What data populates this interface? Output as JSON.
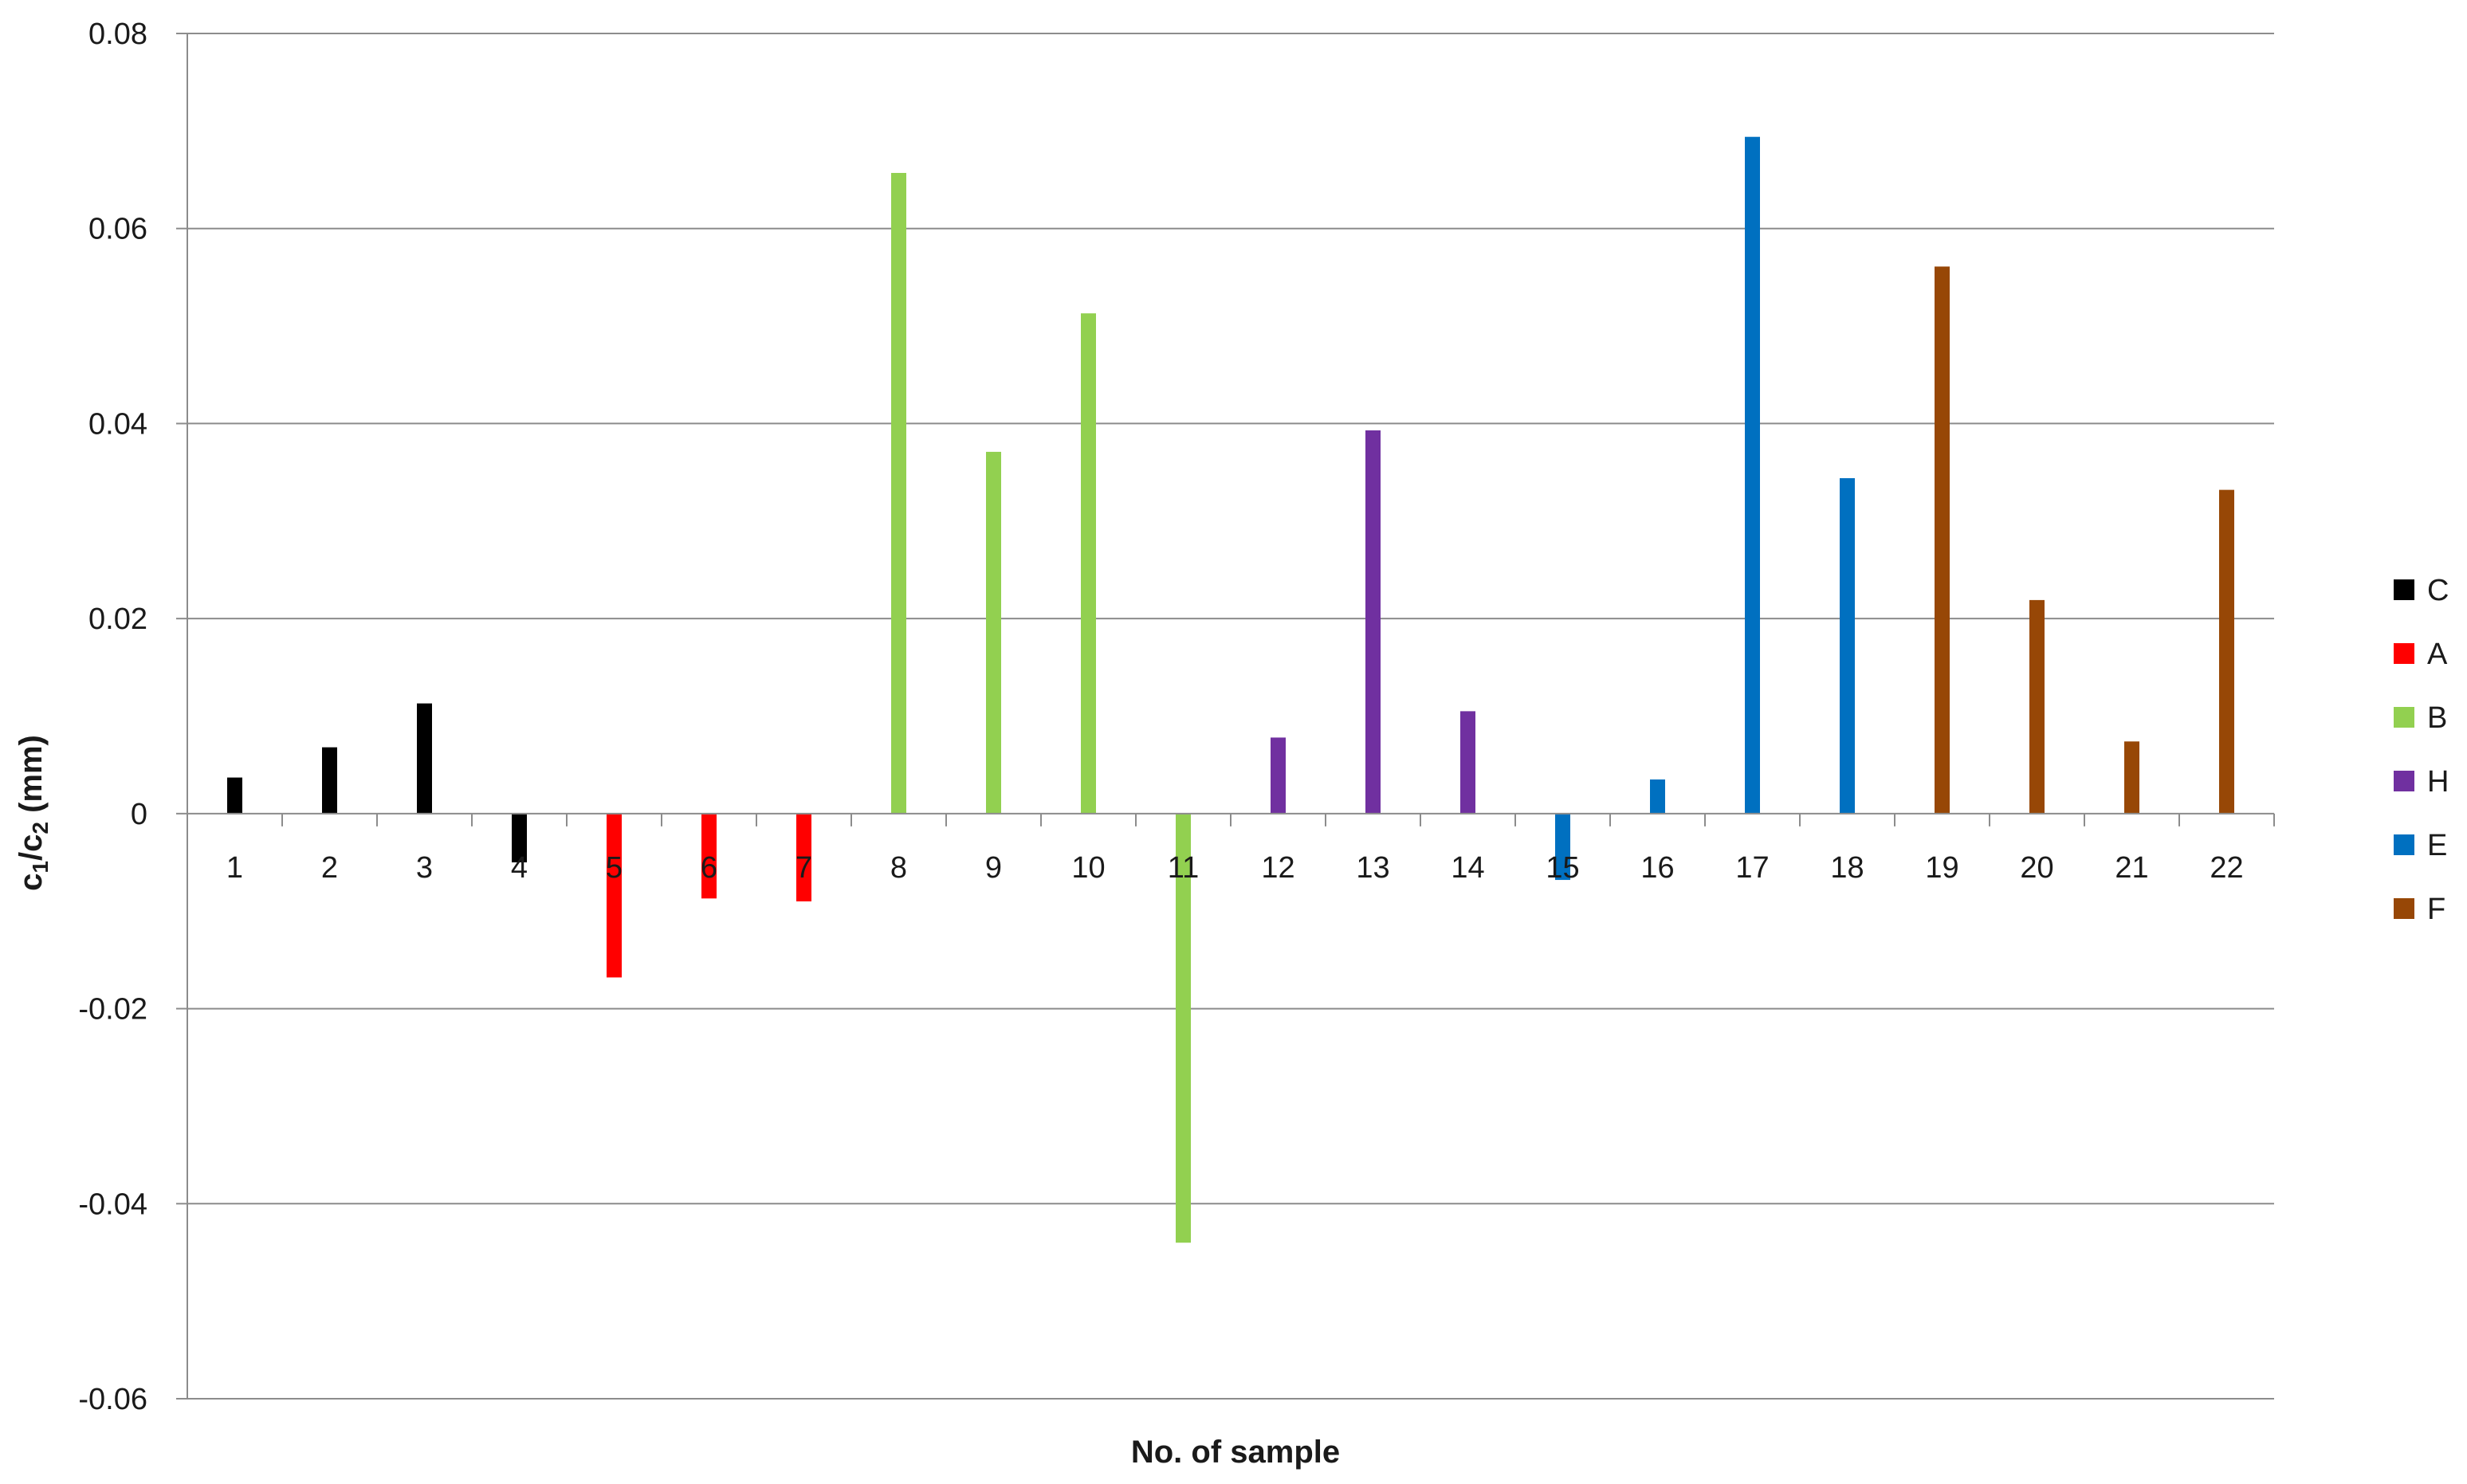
{
  "chart_data": {
    "type": "bar",
    "title": "",
    "xlabel": "No. of sample",
    "ylabel_base1": "c",
    "ylabel_sub1": "1",
    "ylabel_sep": "/",
    "ylabel_base2": "c",
    "ylabel_sub2": "2",
    "ylabel_unit": " (mm)",
    "ylim": [
      -0.06,
      0.08
    ],
    "yticks": [
      -0.06,
      -0.04,
      -0.02,
      0,
      0.02,
      0.04,
      0.06,
      0.08
    ],
    "ytick_labels": [
      "-0.06",
      "-0.04",
      "-0.02",
      "0",
      "0.02",
      "0.04",
      "0.06",
      "0.08"
    ],
    "grid": "horizontal",
    "legend_position": "right",
    "categories": [
      "1",
      "2",
      "3",
      "4",
      "5",
      "6",
      "7",
      "8",
      "9",
      "10",
      "11",
      "12",
      "13",
      "14",
      "15",
      "16",
      "17",
      "18",
      "19",
      "20",
      "21",
      "22"
    ],
    "series": [
      {
        "name": "C",
        "color": "#000000",
        "values": [
          0.0037,
          0.0068,
          0.0113,
          -0.005,
          null,
          null,
          null,
          null,
          null,
          null,
          null,
          null,
          null,
          null,
          null,
          null,
          null,
          null,
          null,
          null,
          null,
          null
        ]
      },
      {
        "name": "A",
        "color": "#ff0000",
        "values": [
          null,
          null,
          null,
          null,
          -0.0168,
          -0.0087,
          -0.009,
          null,
          null,
          null,
          null,
          null,
          null,
          null,
          null,
          null,
          null,
          null,
          null,
          null,
          null,
          null
        ]
      },
      {
        "name": "B",
        "color": "#92d050",
        "values": [
          null,
          null,
          null,
          null,
          null,
          null,
          null,
          0.0657,
          0.0371,
          0.0513,
          -0.044,
          null,
          null,
          null,
          null,
          null,
          null,
          null,
          null,
          null,
          null,
          null
        ]
      },
      {
        "name": "H",
        "color": "#7030a0",
        "values": [
          null,
          null,
          null,
          null,
          null,
          null,
          null,
          null,
          null,
          null,
          null,
          0.0078,
          0.0393,
          0.0105,
          null,
          null,
          null,
          null,
          null,
          null,
          null,
          null
        ]
      },
      {
        "name": "E",
        "color": "#0070c0",
        "values": [
          null,
          null,
          null,
          null,
          null,
          null,
          null,
          null,
          null,
          null,
          null,
          null,
          null,
          null,
          -0.0068,
          0.0035,
          0.0694,
          0.0344,
          null,
          null,
          null,
          null
        ]
      },
      {
        "name": "F",
        "color": "#974706",
        "values": [
          null,
          null,
          null,
          null,
          null,
          null,
          null,
          null,
          null,
          null,
          null,
          null,
          null,
          null,
          null,
          null,
          null,
          null,
          0.0561,
          0.0219,
          0.0074,
          0.0332
        ]
      }
    ]
  }
}
